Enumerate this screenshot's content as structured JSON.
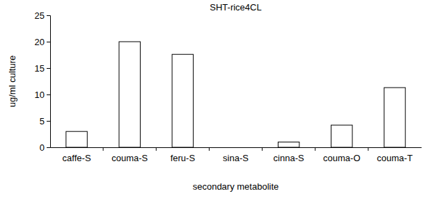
{
  "chart_data": {
    "type": "bar",
    "title": "SHT-rice4CL",
    "x_label": "secondary metabolite",
    "y_label": "ug/ml culture",
    "categories": [
      "caffe-S",
      "couma-S",
      "feru-S",
      "sina-S",
      "cinna-S",
      "couma-O",
      "couma-T"
    ],
    "values": [
      3.0,
      20.0,
      17.6,
      0,
      1.0,
      4.2,
      11.3
    ],
    "color": "#ffffff",
    "ylim": [
      0,
      25
    ],
    "yticks": [
      0,
      5,
      10,
      15,
      20,
      25
    ],
    "grid": false
  }
}
